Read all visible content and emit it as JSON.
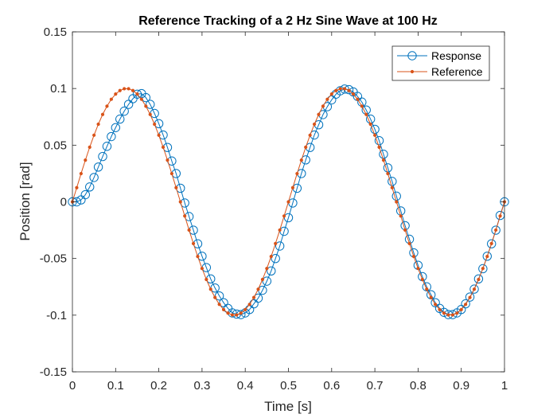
{
  "chart_data": {
    "type": "line",
    "title": "Reference Tracking of a 2 Hz Sine Wave at 100 Hz",
    "xlabel": "Time [s]",
    "ylabel": "Position [rad]",
    "xlim": [
      0,
      1
    ],
    "ylim": [
      -0.15,
      0.15
    ],
    "xticks": [
      0,
      0.1,
      0.2,
      0.3,
      0.4,
      0.5,
      0.6,
      0.7,
      0.8,
      0.9,
      1
    ],
    "xtick_labels": [
      "0",
      "0.1",
      "0.2",
      "0.3",
      "0.4",
      "0.5",
      "0.6",
      "0.7",
      "0.8",
      "0.9",
      "1"
    ],
    "yticks": [
      -0.15,
      -0.1,
      -0.05,
      0,
      0.05,
      0.1,
      0.15
    ],
    "ytick_labels": [
      "-0.15",
      "-0.1",
      "-0.05",
      "0",
      "0.05",
      "0.1",
      "0.15"
    ],
    "grid": false,
    "legend_position": "top-right",
    "x": [
      0,
      0.01,
      0.02,
      0.03,
      0.04,
      0.05,
      0.06,
      0.07,
      0.08,
      0.09,
      0.1,
      0.11,
      0.12,
      0.13,
      0.14,
      0.15,
      0.16,
      0.17,
      0.18,
      0.19,
      0.2,
      0.21,
      0.22,
      0.23,
      0.24,
      0.25,
      0.26,
      0.27,
      0.28,
      0.29,
      0.3,
      0.31,
      0.32,
      0.33,
      0.34,
      0.35,
      0.36,
      0.37,
      0.38,
      0.39,
      0.4,
      0.41,
      0.42,
      0.43,
      0.44,
      0.45,
      0.46,
      0.47,
      0.48,
      0.49,
      0.5,
      0.51,
      0.52,
      0.53,
      0.54,
      0.55,
      0.56,
      0.57,
      0.58,
      0.59,
      0.6,
      0.61,
      0.62,
      0.63,
      0.64,
      0.65,
      0.66,
      0.67,
      0.68,
      0.69,
      0.7,
      0.71,
      0.72,
      0.73,
      0.74,
      0.75,
      0.76,
      0.77,
      0.78,
      0.79,
      0.8,
      0.81,
      0.82,
      0.83,
      0.84,
      0.85,
      0.86,
      0.87,
      0.88,
      0.89,
      0.9,
      0.91,
      0.92,
      0.93,
      0.94,
      0.95,
      0.96,
      0.97,
      0.98,
      0.99,
      1
    ],
    "series": [
      {
        "name": "Response",
        "color": "#0072BD",
        "marker": "circle",
        "values": [
          0.0,
          0.0,
          0.0017,
          0.0063,
          0.0131,
          0.0215,
          0.0307,
          0.04,
          0.049,
          0.0576,
          0.0655,
          0.073,
          0.08,
          0.086,
          0.091,
          0.095,
          0.0955,
          0.092,
          0.086,
          0.078,
          0.069,
          0.059,
          0.048,
          0.036,
          0.025,
          0.012,
          -0.001,
          -0.013,
          -0.025,
          -0.037,
          -0.048,
          -0.058,
          -0.068,
          -0.076,
          -0.083,
          -0.089,
          -0.094,
          -0.098,
          -0.099,
          -0.0995,
          -0.098,
          -0.095,
          -0.09,
          -0.085,
          -0.078,
          -0.07,
          -0.061,
          -0.05,
          -0.039,
          -0.026,
          -0.014,
          -0.001,
          0.012,
          0.025,
          0.037,
          0.048,
          0.059,
          0.068,
          0.077,
          0.084,
          0.09,
          0.095,
          0.098,
          0.0995,
          0.099,
          0.097,
          0.093,
          0.088,
          0.081,
          0.073,
          0.064,
          0.054,
          0.042,
          0.03,
          0.018,
          0.005,
          -0.008,
          -0.021,
          -0.033,
          -0.045,
          -0.056,
          -0.066,
          -0.075,
          -0.082,
          -0.089,
          -0.094,
          -0.0975,
          -0.0995,
          -0.0995,
          -0.098,
          -0.095,
          -0.09,
          -0.084,
          -0.077,
          -0.068,
          -0.059,
          -0.048,
          -0.037,
          -0.025,
          -0.012,
          0.0
        ]
      },
      {
        "name": "Reference",
        "color": "#D95319",
        "marker": "dot",
        "values": [
          0.0,
          0.0125,
          0.0249,
          0.0368,
          0.0482,
          0.0588,
          0.0685,
          0.0771,
          0.0844,
          0.0905,
          0.0951,
          0.0982,
          0.0998,
          0.0998,
          0.0982,
          0.0951,
          0.0905,
          0.0844,
          0.0771,
          0.0685,
          0.0588,
          0.0482,
          0.0368,
          0.0249,
          0.0125,
          0.0,
          -0.0125,
          -0.0249,
          -0.0368,
          -0.0482,
          -0.0588,
          -0.0685,
          -0.0771,
          -0.0844,
          -0.0905,
          -0.0951,
          -0.0982,
          -0.0998,
          -0.0998,
          -0.0982,
          -0.0951,
          -0.0905,
          -0.0844,
          -0.0771,
          -0.0685,
          -0.0588,
          -0.0482,
          -0.0368,
          -0.0249,
          -0.0125,
          0.0,
          0.0125,
          0.0249,
          0.0368,
          0.0482,
          0.0588,
          0.0685,
          0.0771,
          0.0844,
          0.0905,
          0.0951,
          0.0982,
          0.0998,
          0.0998,
          0.0982,
          0.0951,
          0.0905,
          0.0844,
          0.0771,
          0.0685,
          0.0588,
          0.0482,
          0.0368,
          0.0249,
          0.0125,
          0.0,
          -0.0125,
          -0.0249,
          -0.0368,
          -0.0482,
          -0.0588,
          -0.0685,
          -0.0771,
          -0.0844,
          -0.0905,
          -0.0951,
          -0.0982,
          -0.0998,
          -0.0998,
          -0.0982,
          -0.0951,
          -0.0905,
          -0.0844,
          -0.0771,
          -0.0685,
          -0.0588,
          -0.0482,
          -0.0368,
          -0.0249,
          -0.0125,
          0.0
        ]
      }
    ]
  }
}
